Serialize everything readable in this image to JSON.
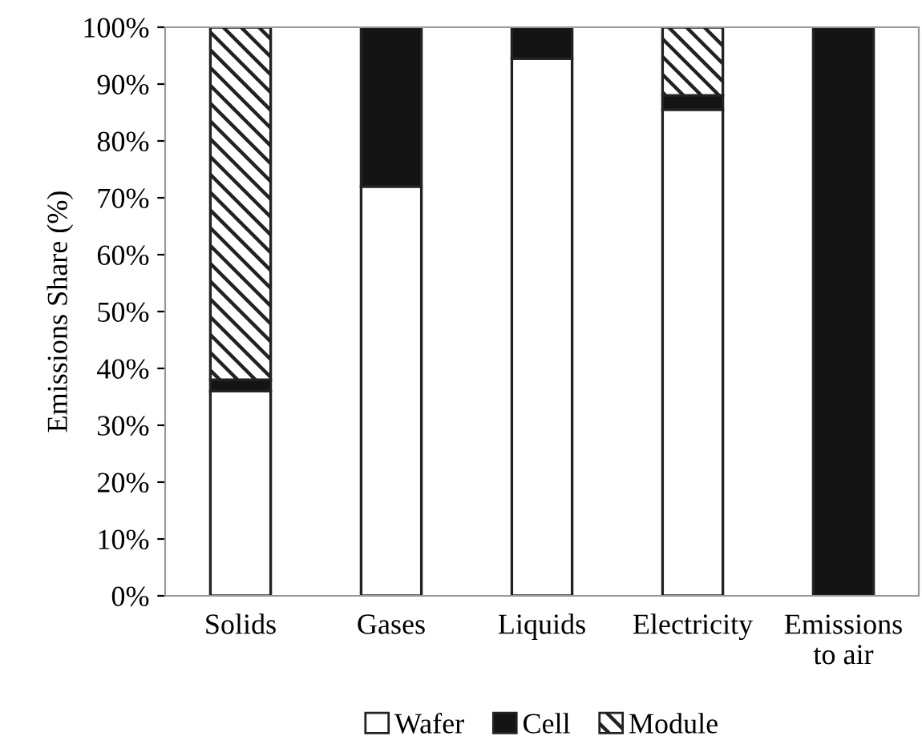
{
  "chart_data": {
    "type": "bar",
    "stacked": true,
    "ylabel": "Emissions Share (%)",
    "categories": [
      "Solids",
      "Gases",
      "Liquids",
      "Electricity",
      "Emissions\nto air"
    ],
    "series": [
      {
        "name": "Wafer",
        "color": "#ffffff",
        "values": [
          36,
          72,
          94.5,
          85.5,
          0
        ]
      },
      {
        "name": "Cell",
        "color": "#141414",
        "values": [
          2,
          28,
          5.5,
          2.5,
          100
        ]
      },
      {
        "name": "Module",
        "color": "#222222",
        "values": [
          62,
          0,
          0,
          12,
          0
        ]
      }
    ],
    "ylim": [
      0,
      100
    ],
    "yticks": [
      {
        "value": 0,
        "label": "0%"
      },
      {
        "value": 10,
        "label": "10%"
      },
      {
        "value": 20,
        "label": "20%"
      },
      {
        "value": 30,
        "label": "30%"
      },
      {
        "value": 40,
        "label": "40%"
      },
      {
        "value": 50,
        "label": "50%"
      },
      {
        "value": 60,
        "label": "60%"
      },
      {
        "value": 70,
        "label": "70%"
      },
      {
        "value": 80,
        "label": "80%"
      },
      {
        "value": 90,
        "label": "90%"
      },
      {
        "value": 100,
        "label": "100%"
      }
    ],
    "grid": false,
    "legend": "bottom"
  }
}
